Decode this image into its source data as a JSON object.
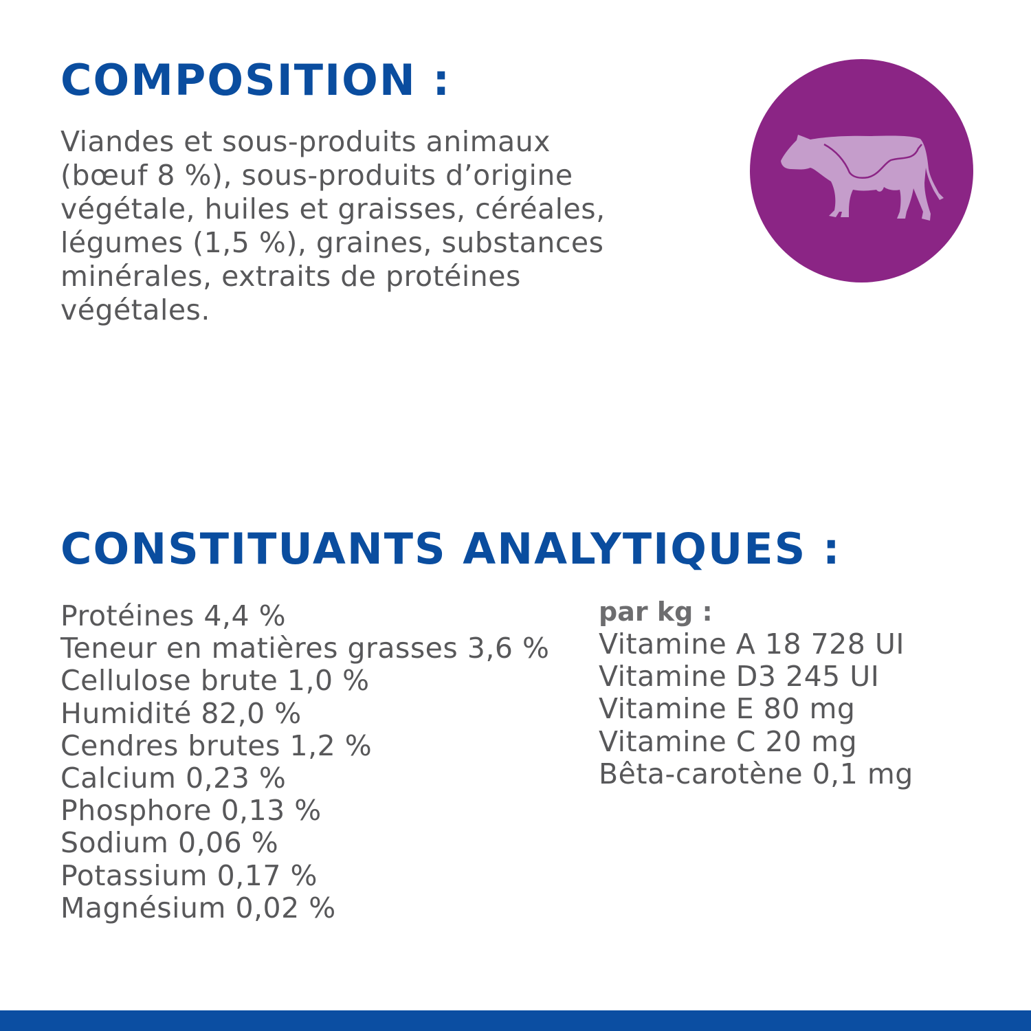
{
  "composition": {
    "title": "COMPOSITION :",
    "lines": [
      "Viandes et sous-produits animaux",
      "(bœuf 8 %), sous-produits d’origine",
      "végétale, huiles et graisses, céréales,",
      "légumes (1,5 %), graines, substances",
      "minérales, extraits de protéines",
      "végétales."
    ]
  },
  "badge": {
    "icon": "cow-icon",
    "color": "#8b2585",
    "icon_color": "#c59dcb"
  },
  "analytical": {
    "title": "CONSTITUANTS ANALYTIQUES :",
    "items": [
      "Protéines 4,4 %",
      "Teneur en matières grasses 3,6 %",
      "Cellulose brute 1,0 %",
      "Humidité 82,0 %",
      "Cendres brutes 1,2 %",
      "Calcium 0,23 %",
      "Phosphore 0,13 %",
      "Sodium 0,06 %",
      "Potassium 0,17 %",
      "Magnésium 0,02 %"
    ],
    "per_kg": {
      "label": "par kg :",
      "items": [
        "Vitamine A 18 728 UI",
        "Vitamine D3 245 UI",
        "Vitamine E 80 mg",
        "Vitamine C 20 mg",
        "Bêta-carotène 0,1 mg"
      ]
    }
  },
  "colors": {
    "heading": "#0a4d9f",
    "text": "#58585a",
    "footer_bar": "#0b4ea2"
  }
}
